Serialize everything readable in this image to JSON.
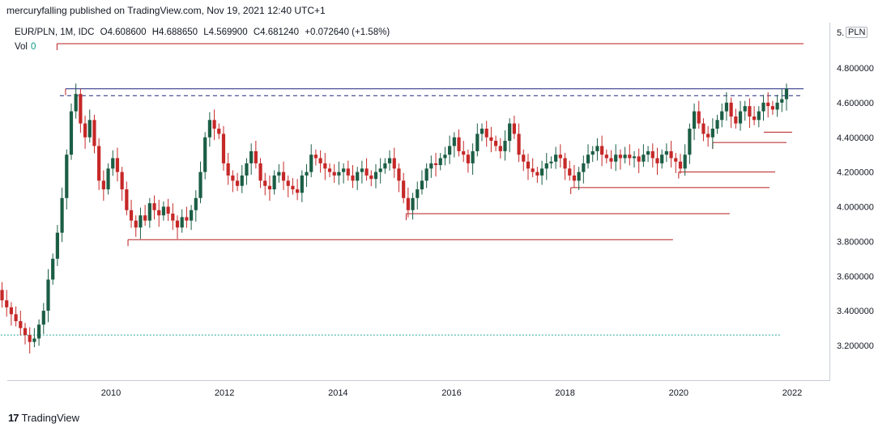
{
  "header": {
    "publisher_line": "mercuryfalling published on TradingView.com, Nov 19, 2021 12:40 UTC+1"
  },
  "legend": {
    "symbol": "EUR/PLN, 1M, IDC",
    "open": "O4.608600",
    "high": "H4.688650",
    "low": "L4.569900",
    "close": "C4.681240",
    "change": "+0.072640 (+1.58%)",
    "vol_label": "Vol",
    "vol_value": "0"
  },
  "currency_badge": "PLN",
  "brand": {
    "logo": "17",
    "name": "TradingView"
  },
  "colors": {
    "up": "#26a69a",
    "upDark": "#1b5e45",
    "down": "#c62828",
    "level": "#b71c1c",
    "blue": "#1a237e",
    "dotted": "#26a69a"
  },
  "chart_data": {
    "type": "candlestick",
    "symbol": "EUR/PLN",
    "timeframe": "1M",
    "y_ticks": [
      "3.200000",
      "3.400000",
      "3.600000",
      "3.800000",
      "4.000000",
      "4.200000",
      "4.400000",
      "4.600000",
      "4.800000"
    ],
    "y_top_label": "5.",
    "x_ticks": [
      "2010",
      "2012",
      "2014",
      "2016",
      "2018",
      "2020",
      "2022"
    ],
    "ylim": [
      3.0,
      5.0
    ],
    "xlim": [
      2008.0,
      2022.6
    ],
    "closes": [
      3.52,
      3.46,
      3.42,
      3.38,
      3.34,
      3.3,
      3.26,
      3.22,
      3.24,
      3.32,
      3.4,
      3.58,
      3.7,
      3.85,
      4.05,
      4.3,
      4.55,
      4.65,
      4.48,
      4.4,
      4.5,
      4.35,
      4.15,
      4.1,
      4.22,
      4.28,
      4.2,
      4.1,
      3.98,
      3.92,
      3.88,
      3.95,
      3.92,
      4.02,
      3.98,
      3.95,
      4.0,
      3.96,
      3.92,
      3.88,
      3.94,
      3.92,
      3.98,
      4.05,
      4.2,
      4.4,
      4.5,
      4.45,
      4.42,
      4.25,
      4.18,
      4.15,
      4.12,
      4.18,
      4.25,
      4.32,
      4.25,
      4.15,
      4.12,
      4.1,
      4.18,
      4.2,
      4.15,
      4.12,
      4.1,
      4.08,
      4.18,
      4.2,
      4.3,
      4.28,
      4.25,
      4.22,
      4.2,
      4.18,
      4.2,
      4.22,
      4.18,
      4.15,
      4.2,
      4.22,
      4.18,
      4.16,
      4.2,
      4.22,
      4.25,
      4.28,
      4.22,
      4.15,
      4.05,
      3.98,
      4.05,
      4.1,
      4.15,
      4.22,
      4.25,
      4.24,
      4.28,
      4.3,
      4.35,
      4.4,
      4.32,
      4.3,
      4.25,
      4.32,
      4.42,
      4.45,
      4.4,
      4.38,
      4.35,
      4.32,
      4.38,
      4.48,
      4.42,
      4.3,
      4.26,
      4.22,
      4.2,
      4.18,
      4.22,
      4.25,
      4.26,
      4.3,
      4.28,
      4.22,
      4.18,
      4.15,
      4.2,
      4.25,
      4.3,
      4.32,
      4.35,
      4.3,
      4.28,
      4.26,
      4.3,
      4.28,
      4.3,
      4.28,
      4.29,
      4.26,
      4.3,
      4.32,
      4.28,
      4.25,
      4.3,
      4.32,
      4.28,
      4.26,
      4.22,
      4.3,
      4.45,
      4.55,
      4.48,
      4.42,
      4.4,
      4.45,
      4.5,
      4.55,
      4.6,
      4.52,
      4.48,
      4.55,
      4.58,
      4.52,
      4.5,
      4.55,
      4.6,
      4.58,
      4.56,
      4.6,
      4.62,
      4.68
    ],
    "levels": [
      {
        "price": 4.94,
        "x_start": 2009.05,
        "x_end": 2022.2,
        "style": "solid",
        "color": "#b71c1c"
      },
      {
        "price": 4.68,
        "x_start": 2009.2,
        "x_end": 2022.2,
        "style": "solid",
        "color": "#1a237e"
      },
      {
        "price": 4.64,
        "x_start": 2009.1,
        "x_end": 2022.2,
        "style": "dashed",
        "color": "#1a237e"
      },
      {
        "price": 4.43,
        "x_start": 2021.5,
        "x_end": 2022.0,
        "style": "solid",
        "color": "#b71c1c"
      },
      {
        "price": 4.37,
        "x_start": 2020.6,
        "x_end": 2021.9,
        "style": "solid",
        "color": "#b71c1c"
      },
      {
        "price": 4.2,
        "x_start": 2020.0,
        "x_end": 2021.7,
        "style": "solid",
        "color": "#b71c1c"
      },
      {
        "price": 4.11,
        "x_start": 2018.1,
        "x_end": 2021.6,
        "style": "solid",
        "color": "#b71c1c"
      },
      {
        "price": 3.96,
        "x_start": 2015.2,
        "x_end": 2020.9,
        "style": "solid",
        "color": "#b71c1c"
      },
      {
        "price": 3.81,
        "x_start": 2010.3,
        "x_end": 2019.9,
        "style": "solid",
        "color": "#b71c1c"
      },
      {
        "price": 3.26,
        "x_start": 2008.0,
        "x_end": 2021.8,
        "style": "dotted",
        "color": "#26a69a"
      }
    ]
  }
}
